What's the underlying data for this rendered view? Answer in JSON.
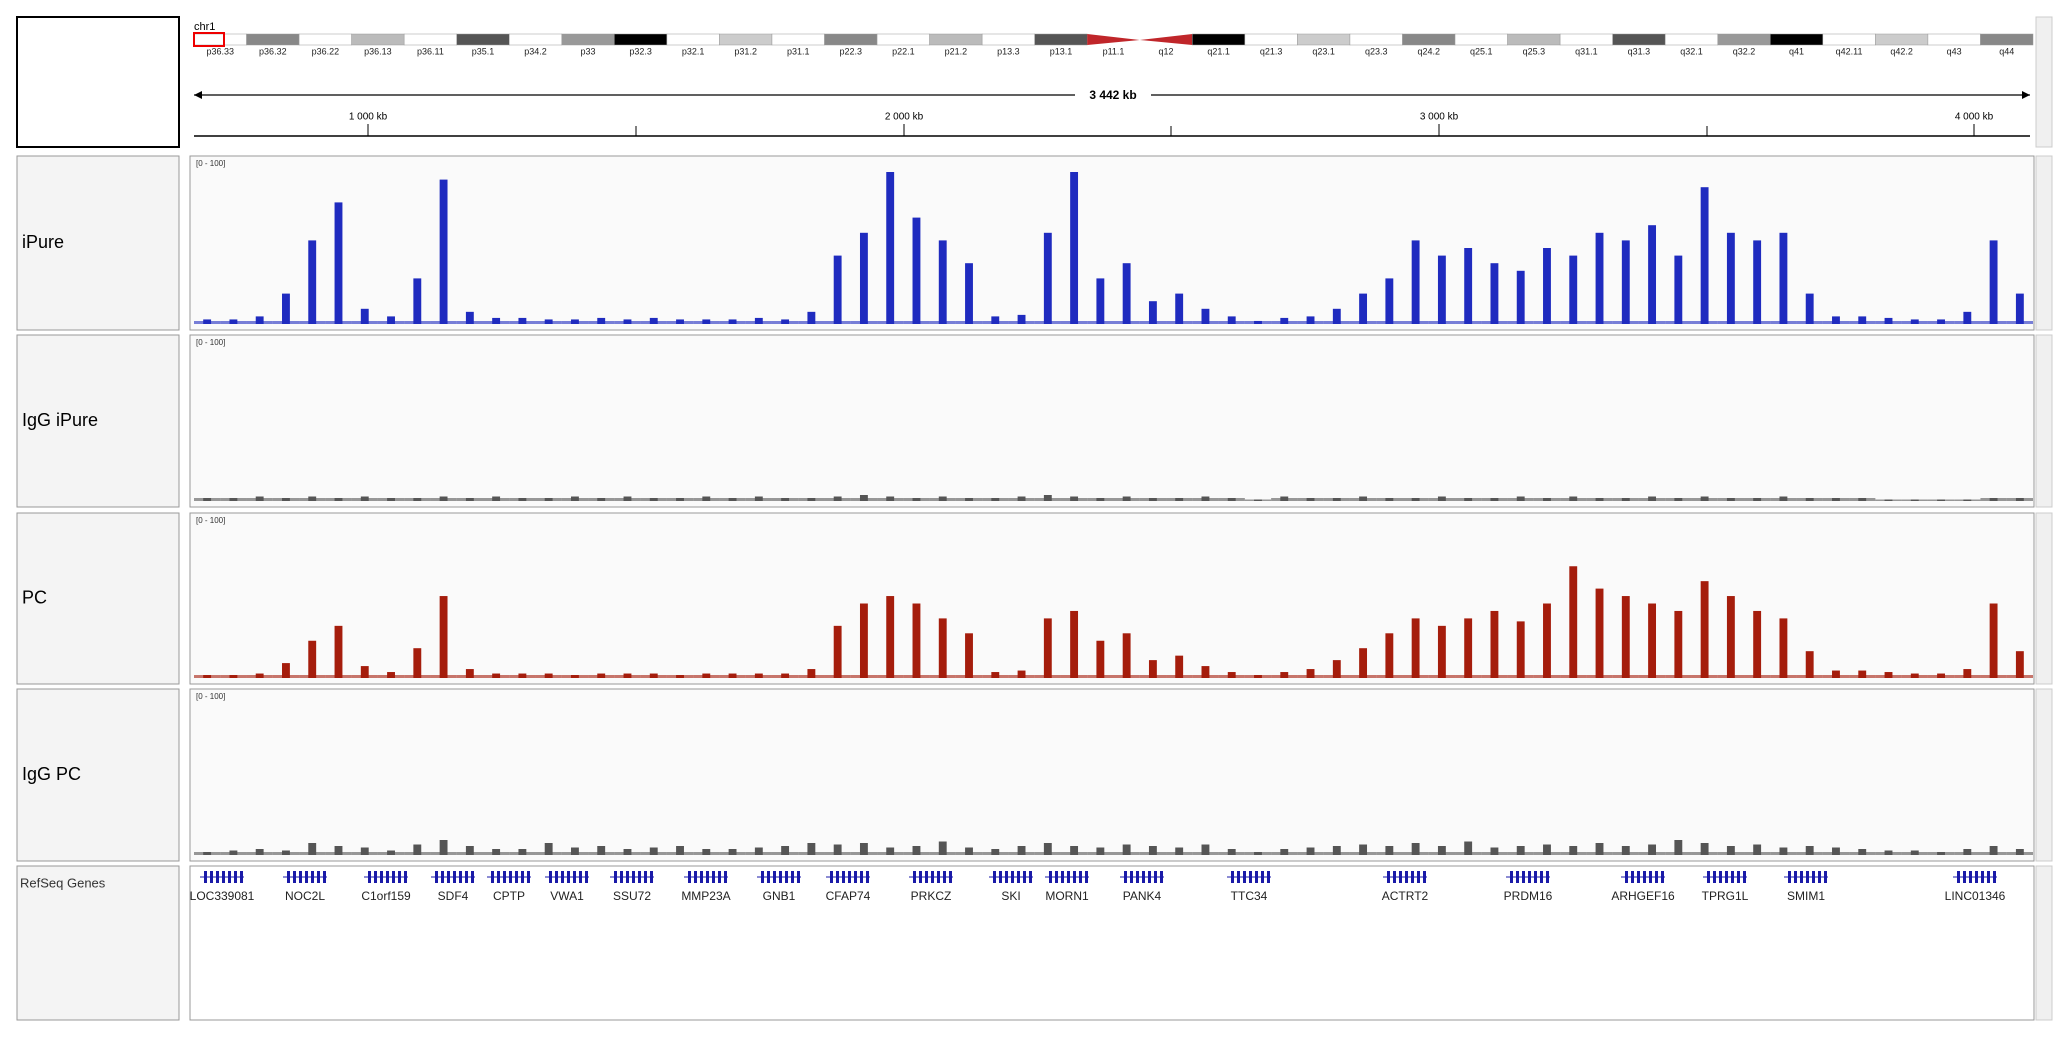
{
  "ideogram": {
    "chromosome": "chr1",
    "bands": [
      "p36.33",
      "p36.32",
      "p36.22",
      "p36.13",
      "p36.11",
      "p35.1",
      "p34.2",
      "p33",
      "p32.3",
      "p32.1",
      "p31.2",
      "p31.1",
      "p22.3",
      "p22.1",
      "p21.2",
      "p13.3",
      "p13.1",
      "p11.1",
      "q12",
      "q21.1",
      "q21.3",
      "q23.1",
      "q23.3",
      "q24.2",
      "q25.1",
      "q25.3",
      "q31.1",
      "q31.3",
      "q32.1",
      "q32.2",
      "q41",
      "q42.11",
      "q42.2",
      "q43",
      "q44"
    ]
  },
  "ruler": {
    "span": "3 442 kb",
    "ticks": [
      "1 000 kb",
      "2 000 kb",
      "3 000 kb",
      "4 000 kb"
    ]
  },
  "ylim": [
    0,
    100
  ],
  "tracks": [
    {
      "name": "iPure",
      "range": "[0 - 100]",
      "color": "#1f2bbf",
      "values": [
        3,
        3,
        5,
        20,
        55,
        80,
        10,
        5,
        30,
        95,
        8,
        4,
        4,
        3,
        3,
        4,
        3,
        4,
        3,
        3,
        3,
        4,
        3,
        8,
        45,
        60,
        100,
        70,
        55,
        40,
        5,
        6,
        60,
        100,
        30,
        40,
        15,
        20,
        10,
        5,
        2,
        4,
        5,
        10,
        20,
        30,
        55,
        45,
        50,
        40,
        35,
        50,
        45,
        60,
        55,
        65,
        45,
        90,
        60,
        55,
        60,
        20,
        5,
        5,
        4,
        3,
        3,
        8,
        55,
        20
      ]
    },
    {
      "name": "IgG iPure",
      "range": "[0 - 100]",
      "color": "#555555",
      "values": [
        2,
        2,
        3,
        2,
        3,
        2,
        3,
        2,
        2,
        3,
        2,
        3,
        2,
        2,
        3,
        2,
        3,
        2,
        2,
        3,
        2,
        3,
        2,
        2,
        3,
        4,
        3,
        2,
        3,
        2,
        2,
        3,
        4,
        3,
        2,
        3,
        2,
        2,
        3,
        2,
        1,
        3,
        2,
        2,
        3,
        2,
        2,
        3,
        2,
        2,
        3,
        2,
        3,
        2,
        2,
        3,
        2,
        3,
        2,
        2,
        3,
        2,
        2,
        2,
        1,
        1,
        1,
        1,
        2,
        2
      ]
    },
    {
      "name": "PC",
      "range": "[0 - 100]",
      "color": "#a51d0c",
      "values": [
        2,
        2,
        3,
        10,
        25,
        35,
        8,
        4,
        20,
        55,
        6,
        3,
        3,
        3,
        2,
        3,
        3,
        3,
        2,
        3,
        3,
        3,
        3,
        6,
        35,
        50,
        55,
        50,
        40,
        30,
        4,
        5,
        40,
        45,
        25,
        30,
        12,
        15,
        8,
        4,
        2,
        4,
        6,
        12,
        20,
        30,
        40,
        35,
        40,
        45,
        38,
        50,
        75,
        60,
        55,
        50,
        45,
        65,
        55,
        45,
        40,
        18,
        5,
        5,
        4,
        3,
        3,
        6,
        50,
        18
      ]
    },
    {
      "name": "IgG PC",
      "range": "[0 - 100]",
      "color": "#555555",
      "values": [
        2,
        3,
        4,
        3,
        8,
        6,
        5,
        3,
        7,
        10,
        6,
        4,
        4,
        8,
        5,
        6,
        4,
        5,
        6,
        4,
        4,
        5,
        6,
        8,
        7,
        8,
        5,
        6,
        9,
        5,
        4,
        6,
        8,
        6,
        5,
        7,
        6,
        5,
        7,
        4,
        2,
        4,
        5,
        6,
        7,
        6,
        8,
        6,
        9,
        5,
        6,
        7,
        6,
        8,
        6,
        7,
        10,
        8,
        6,
        7,
        5,
        6,
        5,
        4,
        3,
        3,
        2,
        4,
        6,
        4
      ]
    }
  ],
  "genes": {
    "name": "RefSeq Genes",
    "labels": [
      "LOC339081",
      "NOC2L",
      "C1orf159",
      "SDF4",
      "CPTP",
      "VWA1",
      "SSU72",
      "MMP23A",
      "GNB1",
      "CFAP74",
      "PRKCZ",
      "SKI",
      "MORN1",
      "PANK4",
      "TTC34",
      "ACTRT2",
      "PRDM16",
      "ARHGEF16",
      "TPRG1L",
      "SMIM1",
      "LINC01346"
    ]
  }
}
